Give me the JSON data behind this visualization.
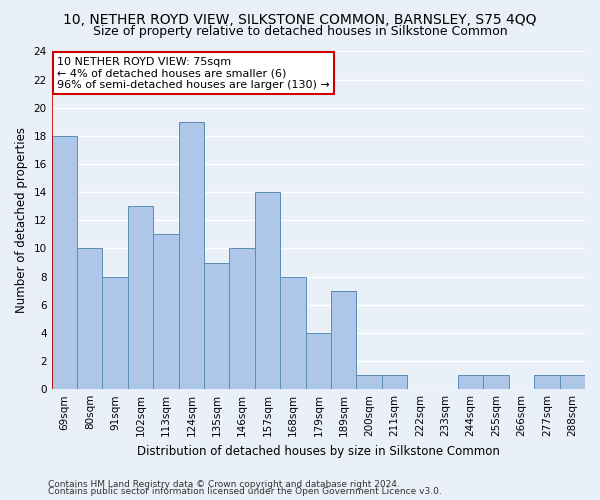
{
  "title": "10, NETHER ROYD VIEW, SILKSTONE COMMON, BARNSLEY, S75 4QQ",
  "subtitle": "Size of property relative to detached houses in Silkstone Common",
  "xlabel": "Distribution of detached houses by size in Silkstone Common",
  "ylabel": "Number of detached properties",
  "categories": [
    "69sqm",
    "80sqm",
    "91sqm",
    "102sqm",
    "113sqm",
    "124sqm",
    "135sqm",
    "146sqm",
    "157sqm",
    "168sqm",
    "179sqm",
    "189sqm",
    "200sqm",
    "211sqm",
    "222sqm",
    "233sqm",
    "244sqm",
    "255sqm",
    "266sqm",
    "277sqm",
    "288sqm"
  ],
  "values": [
    18,
    10,
    8,
    13,
    11,
    19,
    9,
    10,
    14,
    8,
    4,
    7,
    1,
    1,
    0,
    0,
    1,
    1,
    0,
    1,
    1
  ],
  "bar_color": "#aec6e8",
  "bar_edge_color": "#5b8db8",
  "background_color": "#eaf0f8",
  "grid_color": "#ffffff",
  "annotation_text": "10 NETHER ROYD VIEW: 75sqm\n← 4% of detached houses are smaller (6)\n96% of semi-detached houses are larger (130) →",
  "annotation_box_color": "#ffffff",
  "annotation_box_edge": "#cc0000",
  "ylim": [
    0,
    24
  ],
  "yticks": [
    0,
    2,
    4,
    6,
    8,
    10,
    12,
    14,
    16,
    18,
    20,
    22,
    24
  ],
  "footer_line1": "Contains HM Land Registry data © Crown copyright and database right 2024.",
  "footer_line2": "Contains public sector information licensed under the Open Government Licence v3.0.",
  "title_fontsize": 10,
  "subtitle_fontsize": 9,
  "xlabel_fontsize": 8.5,
  "ylabel_fontsize": 8.5,
  "tick_fontsize": 7.5,
  "annotation_fontsize": 8,
  "footer_fontsize": 6.5
}
